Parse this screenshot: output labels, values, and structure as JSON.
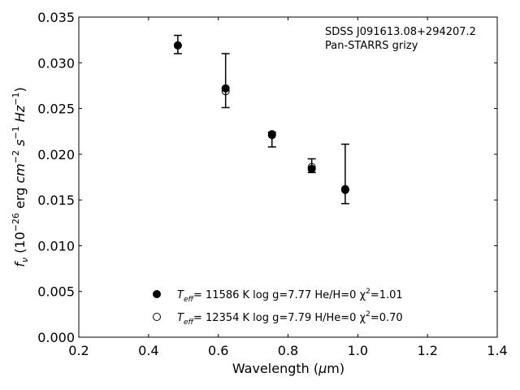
{
  "chart_data": {
    "type": "scatter",
    "xlabel": "Wavelength (μm)",
    "ylabel": "f_ν (10^-26 erg cm^-2 s^-1 Hz^-1)",
    "xlim": [
      0.2,
      1.4
    ],
    "ylim": [
      0.0,
      0.035
    ],
    "x_ticks": [
      "0.2",
      "0.4",
      "0.6",
      "0.8",
      "1.0",
      "1.2",
      "1.4"
    ],
    "y_ticks": [
      "0.000",
      "0.005",
      "0.010",
      "0.015",
      "0.020",
      "0.025",
      "0.030",
      "0.035"
    ],
    "annotations": [
      "SDSS J091613.08+294207.2",
      "Pan-STARRS grizy"
    ],
    "grid": false,
    "legend": "lower-center",
    "observed": {
      "x": [
        0.484,
        0.621,
        0.754,
        0.868,
        0.964
      ],
      "y": [
        0.0319,
        0.0271,
        0.0221,
        0.0187,
        0.0162
      ],
      "yerr_low": [
        0.0009,
        0.002,
        0.0013,
        0.0007,
        0.0016
      ],
      "yerr_high": [
        0.0011,
        0.0039,
        0.0003,
        0.0008,
        0.0049
      ]
    },
    "series": [
      {
        "name": "T_eff= 11586 K  log g=7.77  He/H=0  χ²=1.01",
        "marker": "filled-circle",
        "x": [
          0.484,
          0.621,
          0.754,
          0.868,
          0.964
        ],
        "y": [
          0.0319,
          0.0272,
          0.0222,
          0.0184,
          0.0161
        ]
      },
      {
        "name": "T_eff= 12354 K  log g=7.79  H/He=0  χ²=0.70",
        "marker": "open-circle",
        "x": [
          0.484,
          0.621,
          0.754,
          0.868,
          0.964
        ],
        "y": [
          0.0319,
          0.0269,
          0.0221,
          0.0186,
          0.0162
        ]
      }
    ]
  },
  "legend_items": [
    {
      "teff_prefix": "T",
      "teff_sub": "eff",
      "teff_rest": "= 11586 K  log g=7.77  He/H=0  χ",
      "chi_sup": "2",
      "chi_rest": "=1.01"
    },
    {
      "teff_prefix": "T",
      "teff_sub": "eff",
      "teff_rest": "= 12354 K  log g=7.79  H/He=0  χ",
      "chi_sup": "2",
      "chi_rest": "=0.70"
    }
  ],
  "ylabel_parts": {
    "f": "f",
    "nu": "ν",
    "open": " (10",
    "exp26": "−26",
    "erg": " erg ",
    "cm": "cm",
    "expcm": "−2",
    "s": " s",
    "exps": "−1",
    "hz": " Hz",
    "exphz": "−1",
    "close": ")"
  },
  "xlabel_parts": {
    "pre": "Wavelength (",
    "mu": "μ",
    "post": "m)"
  }
}
